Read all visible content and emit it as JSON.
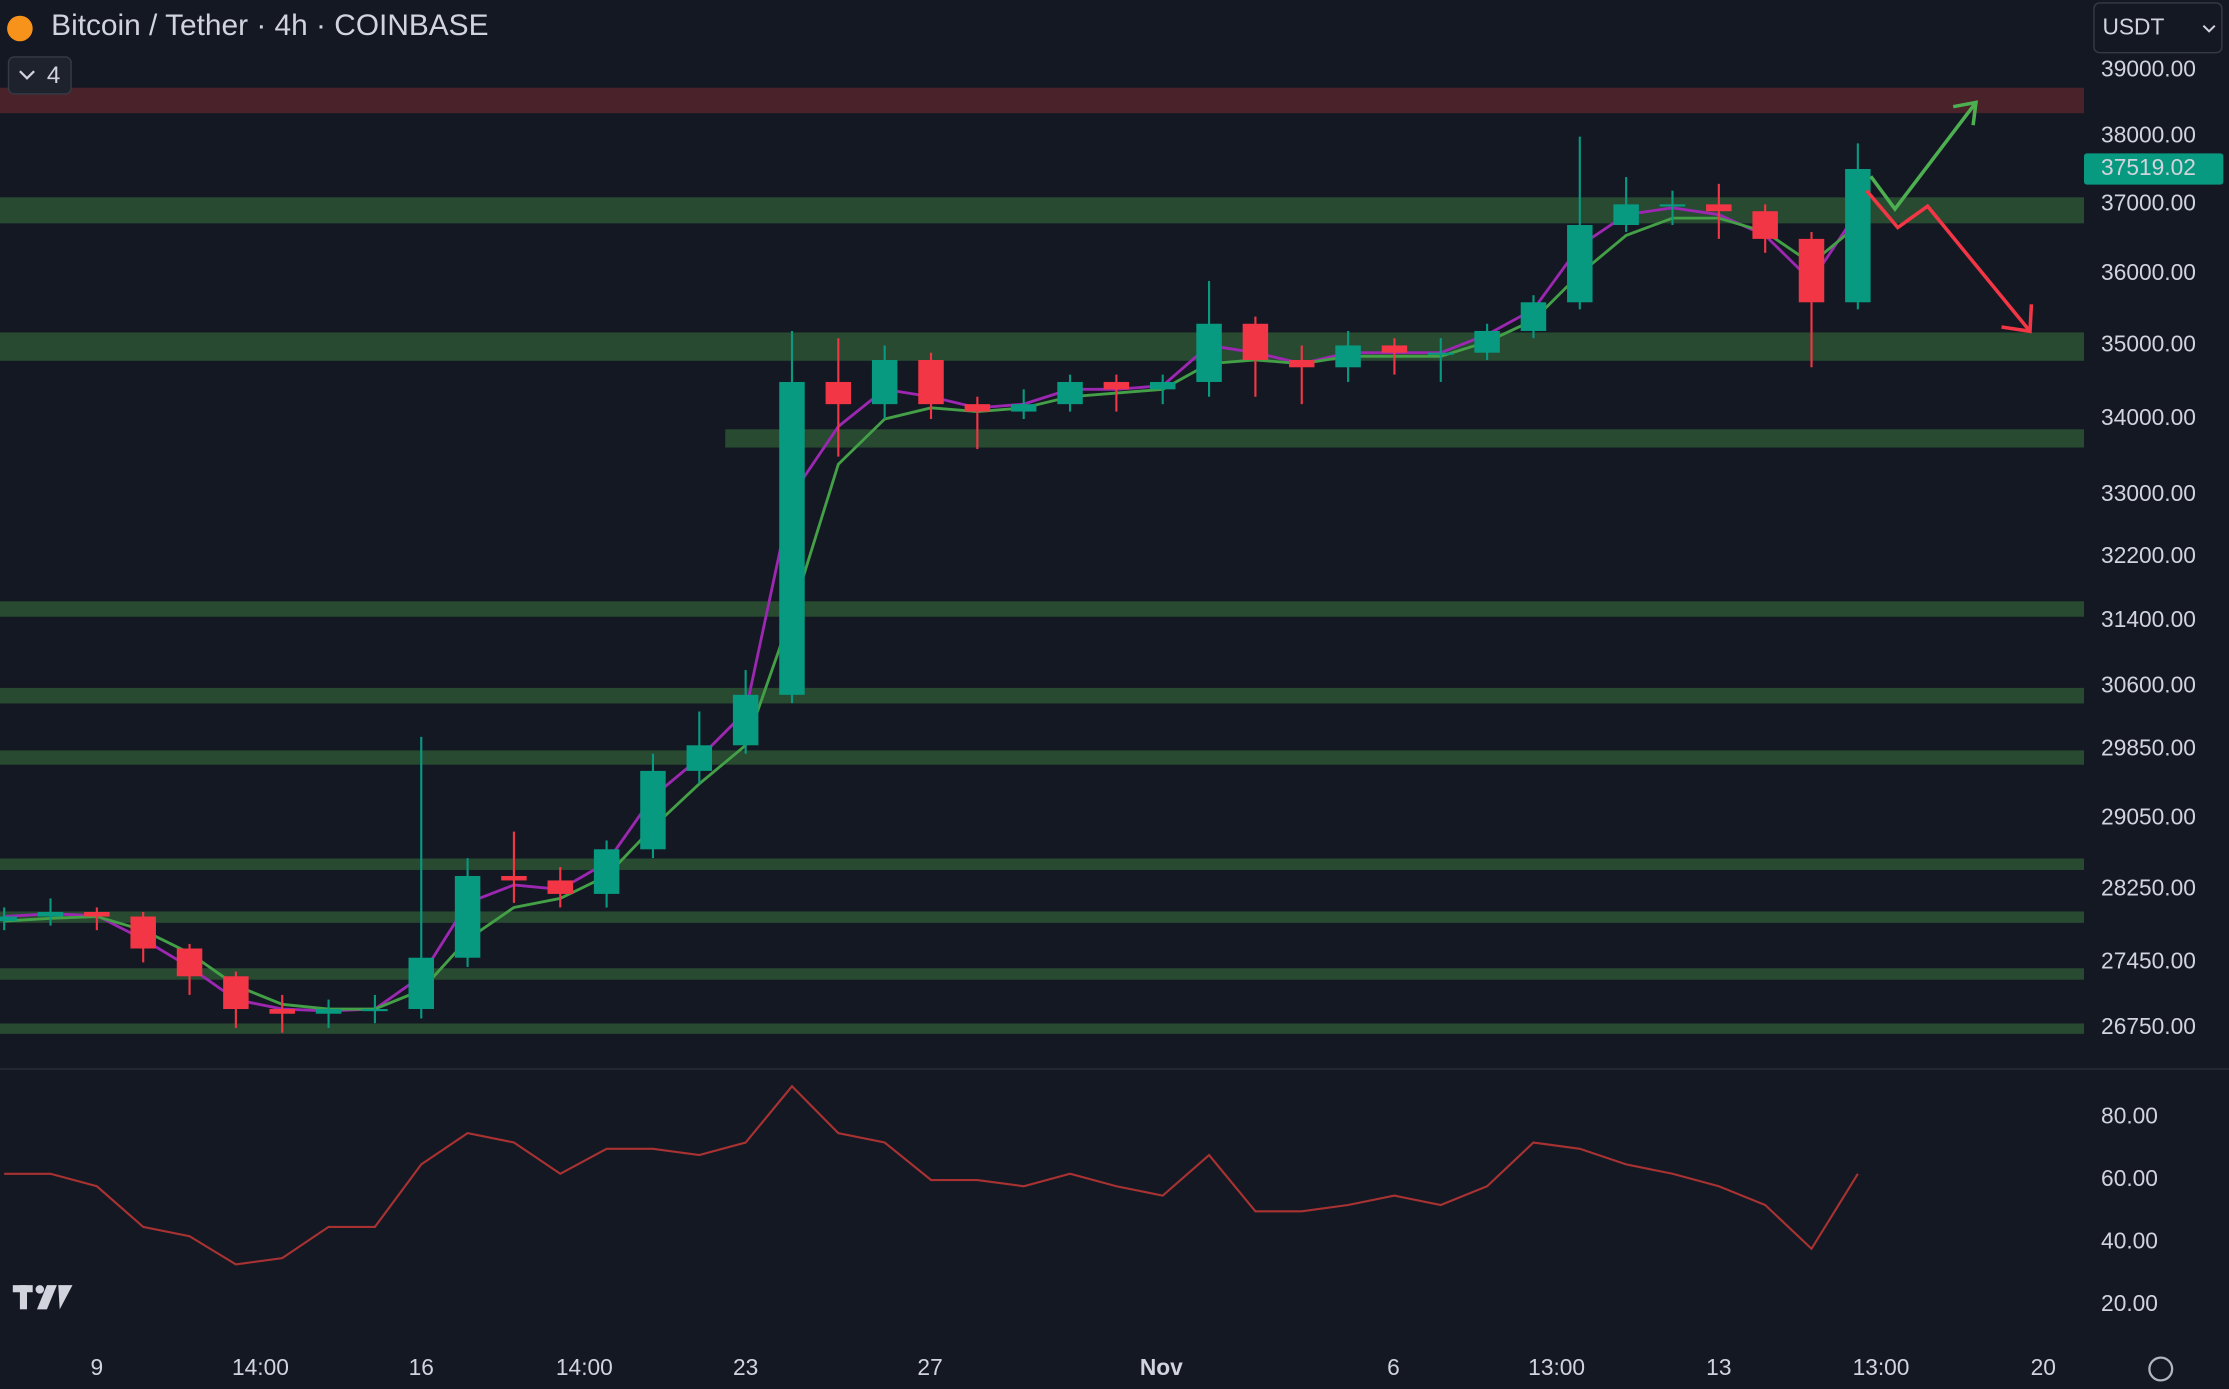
{
  "chart_data": {
    "type": "candlestick",
    "title": "Bitcoin / Tether · 4h · COINBASE",
    "indicator_count": "4",
    "currency": "USDT",
    "log_scale": true,
    "grid": false,
    "xlim": [
      -2.09,
      42.88
    ],
    "xticks": [
      {
        "value": 0,
        "label": "9"
      },
      {
        "value": 3.53,
        "label": "14:00"
      },
      {
        "value": 7,
        "label": "16"
      },
      {
        "value": 10.52,
        "label": "14:00"
      },
      {
        "value": 14,
        "label": "23"
      },
      {
        "value": 17.98,
        "label": "27"
      },
      {
        "value": 22.97,
        "label": "Nov"
      },
      {
        "value": 27.98,
        "label": "6"
      },
      {
        "value": 31.5,
        "label": "13:00"
      },
      {
        "value": 35,
        "label": "13"
      },
      {
        "value": 38.5,
        "label": "13:00"
      },
      {
        "value": 42,
        "label": "20"
      }
    ],
    "ylim": [
      26320,
      40100
    ],
    "yticks": [
      {
        "value": 39000,
        "label": "39000.00"
      },
      {
        "value": 38000,
        "label": "38000.00"
      },
      {
        "value": 37000,
        "label": "37000.00"
      },
      {
        "value": 36000,
        "label": "36000.00"
      },
      {
        "value": 35000,
        "label": "35000.00"
      },
      {
        "value": 34000,
        "label": "34000.00"
      },
      {
        "value": 33000,
        "label": "33000.00"
      },
      {
        "value": 32200,
        "label": "32200.00"
      },
      {
        "value": 31400,
        "label": "31400.00"
      },
      {
        "value": 30600,
        "label": "30600.00"
      },
      {
        "value": 29850,
        "label": "29850.00"
      },
      {
        "value": 29050,
        "label": "29050.00"
      },
      {
        "value": 28250,
        "label": "28250.00"
      },
      {
        "value": 27450,
        "label": "27450.00"
      },
      {
        "value": 26750,
        "label": "26750.00"
      }
    ],
    "last_price": 37519.02,
    "last_price_color": "#089981",
    "up_color": "#089981",
    "down_color": "#f23645",
    "x": [
      -2,
      -1,
      0,
      1,
      2,
      3,
      4,
      5,
      6,
      7,
      8,
      9,
      10,
      11,
      12,
      13,
      14,
      15,
      16,
      17,
      18,
      19,
      20,
      21,
      22,
      23,
      24,
      25,
      26,
      27,
      28,
      29,
      30,
      31,
      32,
      33,
      34,
      35,
      36,
      37,
      38
    ],
    "open": [
      27900,
      27950,
      28000,
      27950,
      27600,
      27300,
      26950,
      26900,
      26950,
      26950,
      27500,
      28400,
      28350,
      28200,
      28700,
      29600,
      29900,
      30500,
      34500,
      34200,
      34800,
      34200,
      34100,
      34200,
      34500,
      34400,
      34500,
      35300,
      34800,
      34700,
      35000,
      34900,
      34900,
      35200,
      35600,
      36700,
      37000,
      37000,
      36900,
      36500,
      35600
    ],
    "high": [
      28050,
      28150,
      28050,
      28000,
      27650,
      27350,
      27100,
      27050,
      27100,
      30000,
      28600,
      28900,
      28500,
      28800,
      29800,
      30300,
      30800,
      35200,
      35100,
      35000,
      34900,
      34300,
      34400,
      34600,
      34600,
      34600,
      35900,
      35400,
      35000,
      35200,
      35100,
      35100,
      35300,
      35700,
      38000,
      37400,
      37200,
      37300,
      37000,
      36600,
      37900
    ],
    "low": [
      27800,
      27850,
      27800,
      27450,
      27100,
      26750,
      26700,
      26750,
      26800,
      26850,
      27400,
      28100,
      28050,
      28050,
      28600,
      29450,
      29800,
      30400,
      33500,
      34000,
      34000,
      33600,
      34000,
      34100,
      34100,
      34200,
      34300,
      34300,
      34200,
      34500,
      34600,
      34500,
      34800,
      35100,
      35500,
      36600,
      36700,
      36500,
      36300,
      34700,
      35500
    ],
    "close": [
      27950,
      28000,
      27950,
      27600,
      27300,
      26950,
      26900,
      26950,
      26950,
      27500,
      28400,
      28350,
      28200,
      28700,
      29600,
      29900,
      30500,
      34500,
      34200,
      34800,
      34200,
      34100,
      34200,
      34500,
      34400,
      34500,
      35300,
      34800,
      34700,
      35000,
      34900,
      34900,
      35200,
      35600,
      36700,
      37000,
      37000,
      36900,
      36500,
      35600,
      37519
    ],
    "series": [
      {
        "color": "#9c27b0",
        "values": [
          27950,
          27980,
          27960,
          27700,
          27400,
          27050,
          26950,
          26930,
          26950,
          27300,
          28100,
          28300,
          28250,
          28550,
          29300,
          29750,
          30300,
          33000,
          33900,
          34400,
          34300,
          34150,
          34200,
          34400,
          34400,
          34450,
          35000,
          34900,
          34750,
          34900,
          34900,
          34900,
          35150,
          35500,
          36400,
          36850,
          36950,
          36850,
          36550,
          35900,
          36900
        ]
      },
      {
        "color": "#43a047",
        "values": [
          27900,
          27930,
          27950,
          27800,
          27550,
          27200,
          27000,
          26950,
          26950,
          27150,
          27700,
          28050,
          28150,
          28400,
          28950,
          29450,
          29900,
          31500,
          33400,
          34000,
          34150,
          34100,
          34150,
          34300,
          34350,
          34400,
          34750,
          34800,
          34750,
          34850,
          34850,
          34850,
          35050,
          35350,
          36000,
          36550,
          36800,
          36800,
          36600,
          36150,
          36700
        ]
      }
    ],
    "zones": [
      {
        "from": 38739,
        "to": 38353,
        "color": "#4a2229"
      },
      {
        "from": 37103,
        "to": 36724,
        "color": "#274a31"
      },
      {
        "from": 35180,
        "to": 34789,
        "color": "#274a31"
      },
      {
        "from": 33863,
        "to": 33620,
        "color": "#274a31",
        "x0": 13.56
      },
      {
        "from": 31645,
        "to": 31453,
        "color": "#274a31"
      },
      {
        "from": 30584,
        "to": 30397,
        "color": "#274a31"
      },
      {
        "from": 29840,
        "to": 29672,
        "color": "#274a31"
      },
      {
        "from": 28596,
        "to": 28467,
        "color": "#274a31"
      },
      {
        "from": 28006,
        "to": 27880,
        "color": "#274a31"
      },
      {
        "from": 27386,
        "to": 27263,
        "color": "#274a31"
      },
      {
        "from": 26797,
        "to": 26688,
        "color": "#274a31"
      }
    ],
    "rsi": {
      "color": "#a83232",
      "ylim": [
        7.7,
        95.5
      ],
      "yticks": [
        {
          "value": 80,
          "label": "80.00"
        },
        {
          "value": 60,
          "label": "60.00"
        },
        {
          "value": 40,
          "label": "40.00"
        },
        {
          "value": 20,
          "label": "20.00"
        }
      ],
      "values": [
        62,
        62,
        58,
        45,
        42,
        33,
        35,
        45,
        45,
        65,
        75,
        72,
        62,
        70,
        70,
        68,
        72,
        90,
        75,
        72,
        60,
        60,
        58,
        62,
        58,
        55,
        68,
        50,
        50,
        52,
        55,
        52,
        58,
        72,
        70,
        65,
        62,
        58,
        52,
        38,
        62
      ]
    }
  }
}
